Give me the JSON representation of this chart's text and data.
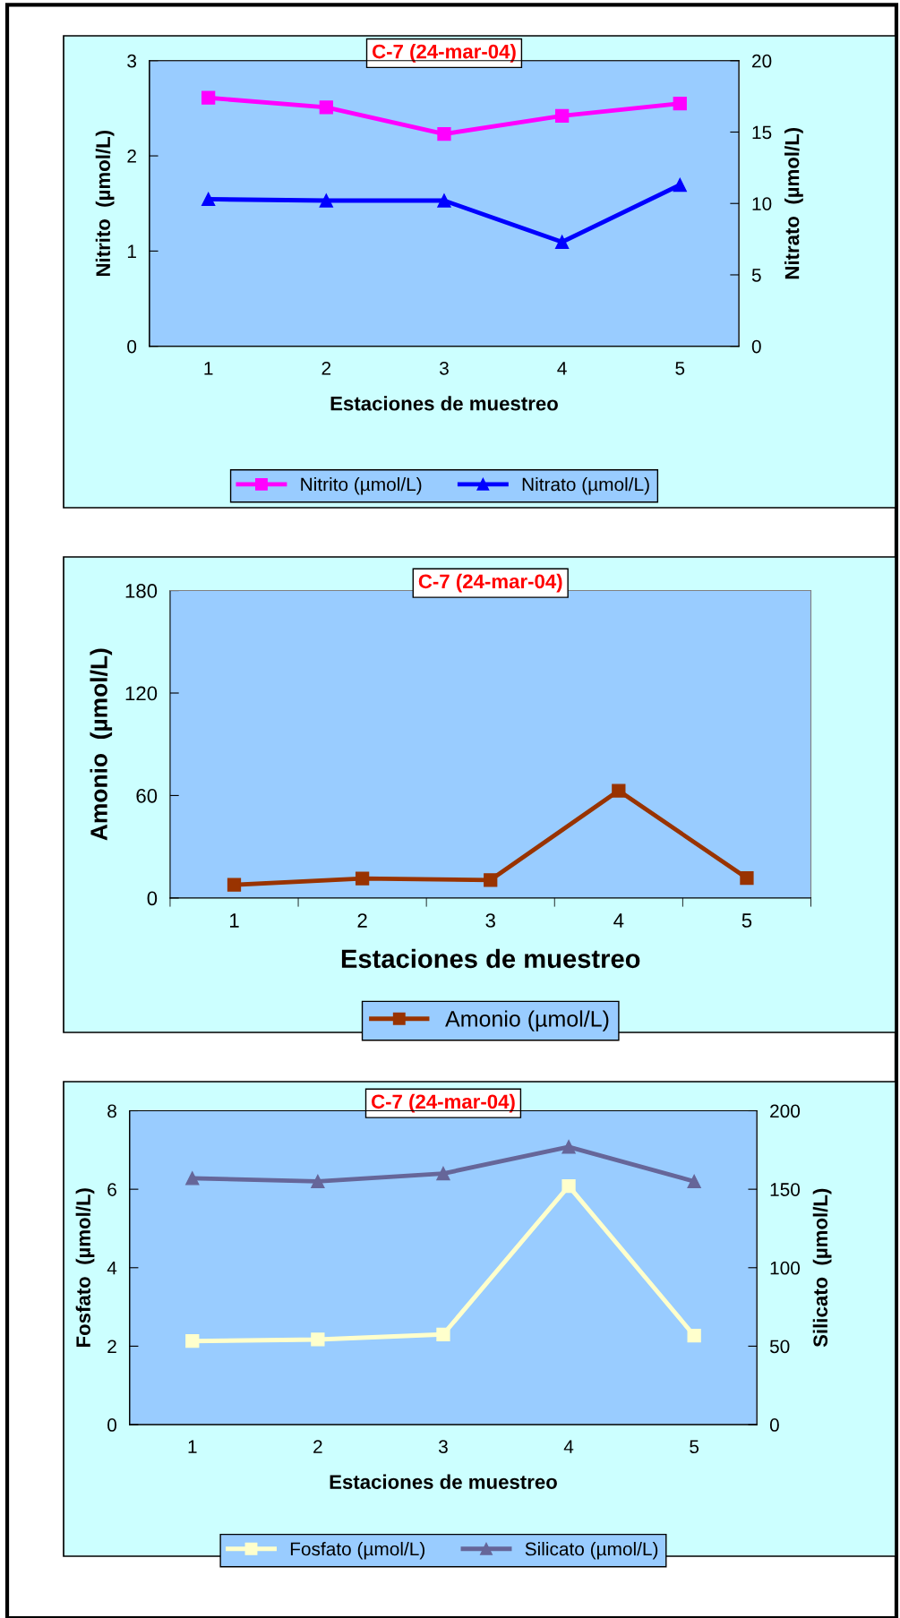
{
  "chart_data": [
    {
      "type": "line",
      "title": "C-7 (24-mar-04)",
      "xlabel": "Estaciones de muestreo",
      "ylabel": "Nitrito  (µmol/L)",
      "y2label": "Nitrato  (µmol/L)",
      "categories": [
        "1",
        "2",
        "3",
        "4",
        "5"
      ],
      "series": [
        {
          "name": "Nitrito (µmol/L)",
          "color": "#ff00ff",
          "marker": "square",
          "values": [
            2.61,
            2.51,
            2.23,
            2.42,
            2.55
          ]
        },
        {
          "name": "Nitrato (µmol/L)",
          "color": "#0000ff",
          "marker": "triangle",
          "axis": "y2",
          "values": [
            10.3,
            10.2,
            10.2,
            7.3,
            11.3
          ]
        }
      ],
      "ylim": [
        0,
        3
      ],
      "yticks": [
        0,
        1,
        2,
        3
      ],
      "y2lim": [
        0,
        20
      ],
      "y2ticks": [
        0,
        5,
        10,
        15,
        20
      ],
      "legend": "bottom",
      "line_style": "solid"
    },
    {
      "type": "line",
      "title": "C-7 (24-mar-04)",
      "xlabel": "Estaciones de muestreo",
      "ylabel": "Amonio  (µmol/L)",
      "categories": [
        "1",
        "2",
        "3",
        "4",
        "5"
      ],
      "series": [
        {
          "name": "Amonio (µmol/L)",
          "color": "#993300",
          "marker": "square",
          "values": [
            7.7,
            11.4,
            10.5,
            62.8,
            11.7
          ]
        }
      ],
      "ylim": [
        0,
        180
      ],
      "yticks": [
        0,
        60,
        120,
        180
      ],
      "legend": "bottom",
      "line_style": "solid"
    },
    {
      "type": "line",
      "title": "C-7 (24-mar-04)",
      "xlabel": "Estaciones de muestreo",
      "ylabel": "Fosfato  (µmol/L)",
      "y2label": "Silicato  (µmol/L)",
      "categories": [
        "1",
        "2",
        "3",
        "4",
        "5"
      ],
      "series": [
        {
          "name": "Fosfato (µmol/L)",
          "color": "#ffffcc",
          "marker": "square",
          "values": [
            2.13,
            2.17,
            2.3,
            6.08,
            2.27
          ]
        },
        {
          "name": "Silicato (µmol/L)",
          "color": "#666699",
          "marker": "triangle",
          "axis": "y2",
          "values": [
            157,
            155,
            160,
            177,
            155
          ]
        }
      ],
      "ylim": [
        0,
        8
      ],
      "yticks": [
        0,
        2,
        4,
        6,
        8
      ],
      "y2lim": [
        0,
        200
      ],
      "y2ticks": [
        0,
        50,
        100,
        150,
        200
      ],
      "legend": "bottom",
      "line_style": "solid"
    }
  ]
}
